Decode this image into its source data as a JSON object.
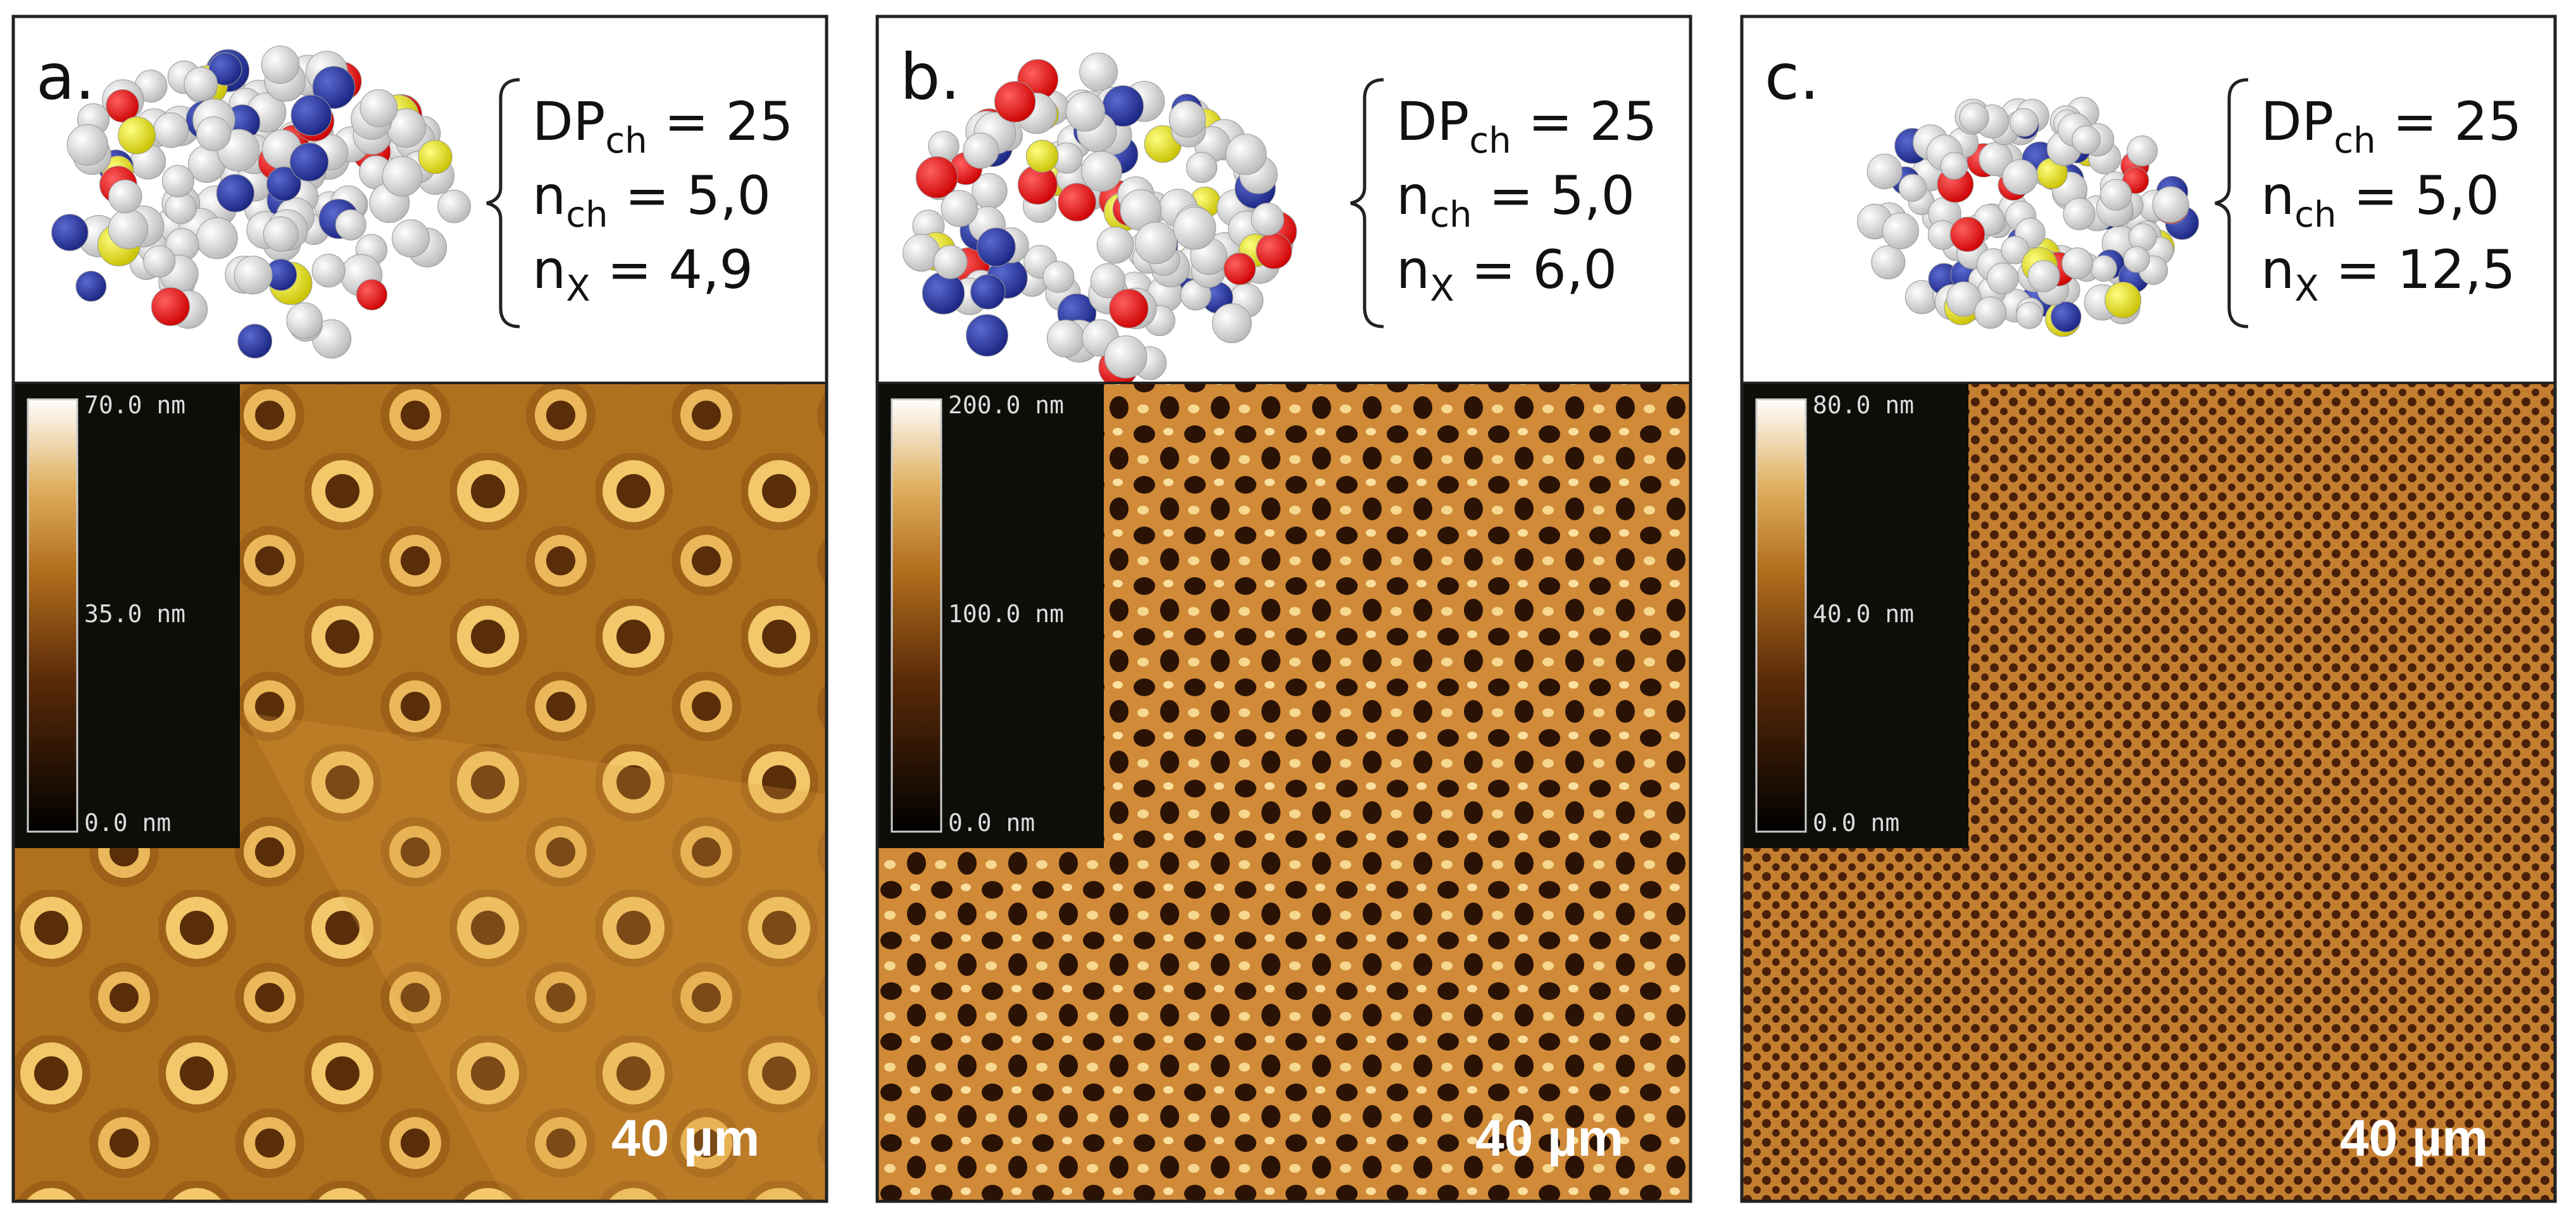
{
  "panels": [
    {
      "label": "a.",
      "params": [
        {
          "symbol": "DP",
          "subscript": "ch",
          "value": " = 25"
        },
        {
          "symbol": "n",
          "subscript": "ch",
          "value": " = 5,0"
        },
        {
          "symbol": "n",
          "subscript": "X",
          "value": " = 4,9"
        }
      ],
      "colorbar": {
        "max": "70.0 nm",
        "mid": "35.0 nm",
        "min": "0.0 nm"
      },
      "scale_bar": "40 µm"
    },
    {
      "label": "b.",
      "params": [
        {
          "symbol": "DP",
          "subscript": "ch",
          "value": " = 25"
        },
        {
          "symbol": "n",
          "subscript": "ch",
          "value": " = 5,0"
        },
        {
          "symbol": "n",
          "subscript": "X",
          "value": " = 6,0"
        }
      ],
      "colorbar": {
        "max": "200.0 nm",
        "mid": "100.0 nm",
        "min": "0.0 nm"
      },
      "scale_bar": "40 µm"
    },
    {
      "label": "c.",
      "params": [
        {
          "symbol": "DP",
          "subscript": "ch",
          "value": " = 25"
        },
        {
          "symbol": "n",
          "subscript": "ch",
          "value": " = 5,0"
        },
        {
          "symbol": "n",
          "subscript": "X",
          "value": " = 12,5"
        }
      ],
      "colorbar": {
        "max": "80.0 nm",
        "mid": "40.0 nm",
        "min": "0.0 nm"
      },
      "scale_bar": "40 µm"
    }
  ]
}
